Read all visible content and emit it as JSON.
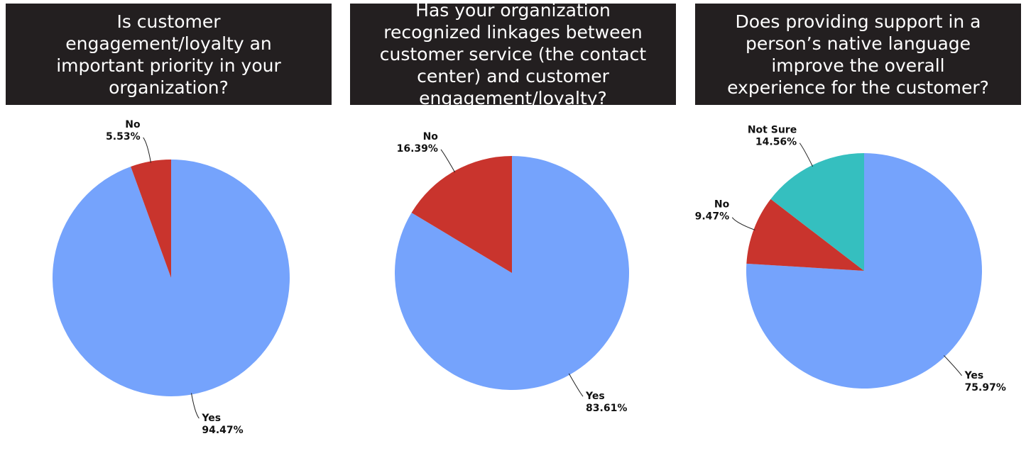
{
  "chart_data": [
    {
      "type": "pie",
      "title": "Is customer engagement/loyalty an important priority in your organization?",
      "categories": [
        "Yes",
        "No"
      ],
      "values": [
        94.47,
        5.53
      ],
      "value_labels": [
        "94.47%",
        "5.53%"
      ],
      "colors": [
        "#75a3fc",
        "#c9342d"
      ]
    },
    {
      "type": "pie",
      "title": "Has your organization recognized linkages between customer service (the contact center) and customer engagement/loyalty?",
      "categories": [
        "Yes",
        "No"
      ],
      "values": [
        83.61,
        16.39
      ],
      "value_labels": [
        "83.61%",
        "16.39%"
      ],
      "colors": [
        "#75a3fc",
        "#c9342d"
      ]
    },
    {
      "type": "pie",
      "title": "Does providing support in a person’s native language improve the overall experience for the customer?",
      "categories": [
        "Yes",
        "No",
        "Not Sure"
      ],
      "values": [
        75.97,
        9.47,
        14.56
      ],
      "value_labels": [
        "75.97%",
        "9.47%",
        "14.56%"
      ],
      "colors": [
        "#75a3fc",
        "#c9342d",
        "#35bfbf"
      ]
    }
  ]
}
